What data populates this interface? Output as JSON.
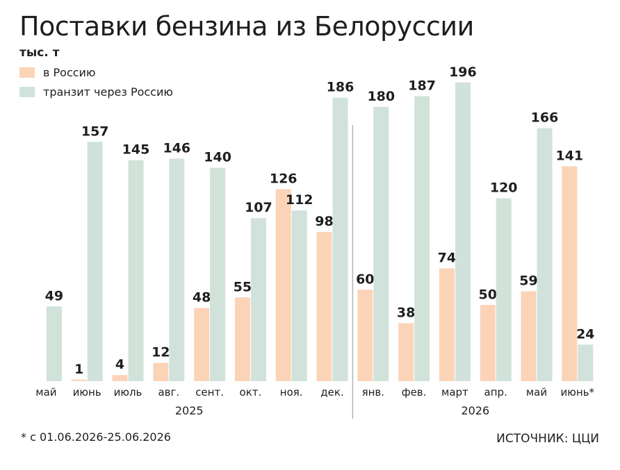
{
  "title": "Поставки бензина из Белоруссии",
  "unit": "тыс. т",
  "legend": [
    {
      "label": "в Россию",
      "color": "#fbd4b8"
    },
    {
      "label": "транзит через Россию",
      "color": "#d0e2da"
    }
  ],
  "footnote": "* с 01.06.2026-25.06.2026",
  "source": "ИСТОЧНИК: ЦЦИ",
  "chart_data": {
    "type": "bar",
    "categories": [
      "май",
      "июнь",
      "июль",
      "авг.",
      "сент.",
      "окт.",
      "ноя.",
      "дек.",
      "янв.",
      "фев.",
      "март",
      "апр.",
      "май",
      "июнь*"
    ],
    "year_groups": [
      {
        "label": "2025",
        "from": 0,
        "to": 7
      },
      {
        "label": "2026",
        "from": 8,
        "to": 13
      }
    ],
    "series": [
      {
        "name": "в Россию",
        "color": "#fbd4b8",
        "values": [
          null,
          1,
          4,
          12,
          48,
          55,
          126,
          98,
          60,
          38,
          74,
          50,
          59,
          141
        ]
      },
      {
        "name": "транзит через Россию",
        "color": "#d0e2da",
        "values": [
          49,
          157,
          145,
          146,
          140,
          107,
          112,
          186,
          180,
          187,
          196,
          120,
          166,
          24
        ]
      }
    ],
    "ylim": [
      0,
      200
    ],
    "grid": false,
    "legend_position": "top-left"
  }
}
